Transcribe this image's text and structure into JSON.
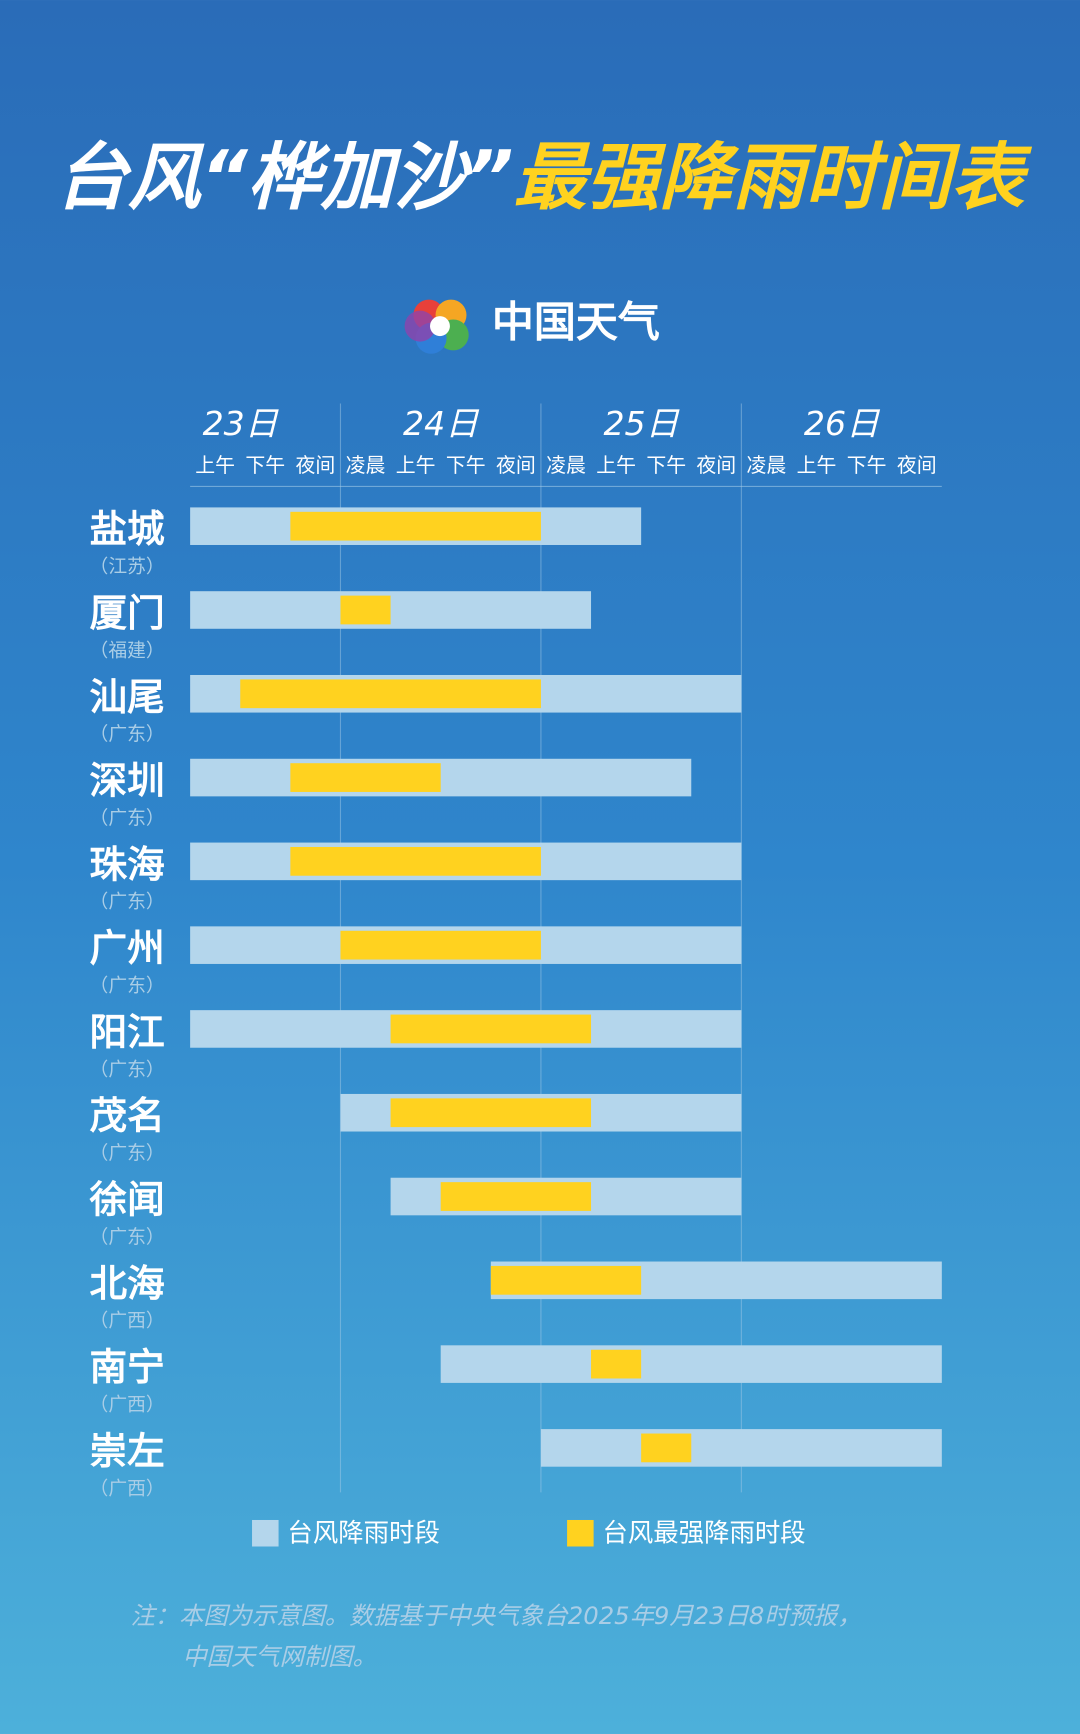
{
  "chart_data": {
    "type": "timeline",
    "title_part1": "台风“桦加沙”",
    "title_part2": "最强降雨时间表",
    "brand": "中国天气",
    "days": [
      "23日",
      "24日",
      "25日",
      "26日"
    ],
    "periods": [
      "上午",
      "下午",
      "夜间",
      "凌晨",
      "上午",
      "下午",
      "夜间",
      "凌晨",
      "上午",
      "下午",
      "夜间",
      "凌晨",
      "上午",
      "下午",
      "夜间"
    ],
    "rows": [
      {
        "name": "盐城",
        "province": "（江苏）"
      },
      {
        "name": "厦门",
        "province": "（福建）"
      },
      {
        "name": "汕尾",
        "province": "（广东）"
      },
      {
        "name": "深圳",
        "province": "（广东）"
      },
      {
        "name": "珠海",
        "province": "（广东）"
      },
      {
        "name": "广州",
        "province": "（广东）"
      },
      {
        "name": "阳江",
        "province": "（广东）"
      },
      {
        "name": "茂名",
        "province": "（广东）"
      },
      {
        "name": "徐闻",
        "province": "（广东）"
      },
      {
        "name": "北海",
        "province": "（广西）"
      },
      {
        "name": "南宁",
        "province": "（广西）"
      },
      {
        "name": "崇左",
        "province": "（广西）"
      }
    ],
    "series": [
      {
        "name": "台风降雨时段",
        "color": "#b4d6ec",
        "values": [
          [
            0,
            9
          ],
          [
            0,
            8
          ],
          [
            0,
            11
          ],
          [
            0,
            10
          ],
          [
            0,
            11
          ],
          [
            0,
            11
          ],
          [
            0,
            11
          ],
          [
            3,
            11
          ],
          [
            4,
            11
          ],
          [
            6,
            15
          ],
          [
            5,
            15
          ],
          [
            7,
            15
          ]
        ]
      },
      {
        "name": "台风最强降雨时段",
        "color": "#ffd21f",
        "values": [
          [
            2,
            7
          ],
          [
            3,
            4
          ],
          [
            1,
            7
          ],
          [
            2,
            5
          ],
          [
            2,
            7
          ],
          [
            3,
            7
          ],
          [
            4,
            8
          ],
          [
            4,
            8
          ],
          [
            5,
            8
          ],
          [
            6,
            9
          ],
          [
            8,
            9
          ],
          [
            9,
            10
          ]
        ]
      }
    ],
    "note_line1": "注：本图为示意图。数据基于中央气象台2025年9月23日8时预报，",
    "note_line2": "中国天气网制图。"
  }
}
